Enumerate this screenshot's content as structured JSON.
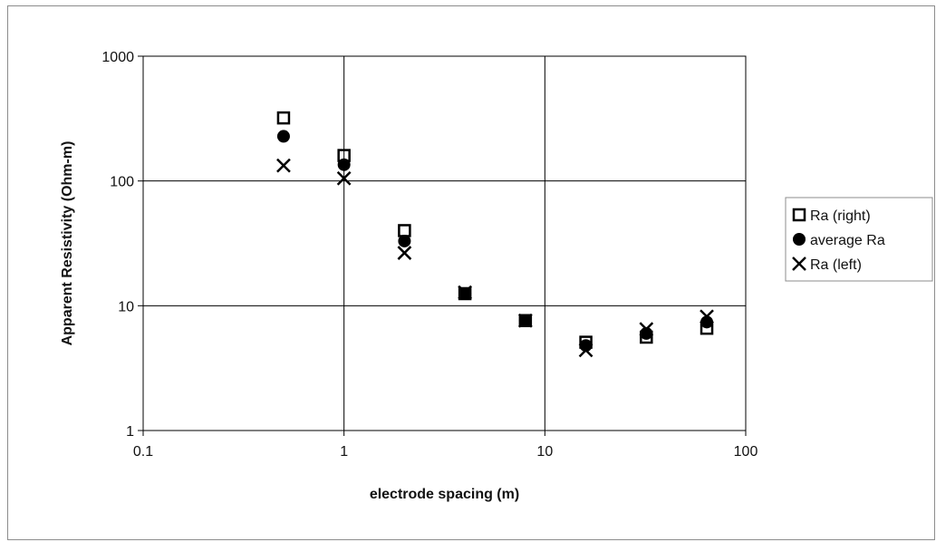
{
  "chart_data": {
    "type": "scatter",
    "title": "",
    "xlabel": "electrode spacing (m)",
    "ylabel": "Apparent Resistivity (Ohm-m)",
    "x_scale": "log",
    "y_scale": "log",
    "xlim": [
      0.1,
      100
    ],
    "ylim": [
      1,
      1000
    ],
    "x_ticks": [
      "0.1",
      "1",
      "10",
      "100"
    ],
    "y_ticks": [
      "1",
      "10",
      "100",
      "1000"
    ],
    "grid": true,
    "legend_position": "right",
    "series": [
      {
        "name": "Ra (right)",
        "marker": "open-square",
        "color": "#000000",
        "points": [
          {
            "x": 0.5,
            "y": 320
          },
          {
            "x": 1,
            "y": 160
          },
          {
            "x": 2,
            "y": 40
          },
          {
            "x": 4,
            "y": 12.5
          },
          {
            "x": 8,
            "y": 7.6
          },
          {
            "x": 16,
            "y": 5.1
          },
          {
            "x": 32,
            "y": 5.6
          },
          {
            "x": 64,
            "y": 6.6
          }
        ]
      },
      {
        "name": "average Ra",
        "marker": "filled-circle",
        "color": "#000000",
        "points": [
          {
            "x": 0.5,
            "y": 228
          },
          {
            "x": 1,
            "y": 135
          },
          {
            "x": 2,
            "y": 33
          },
          {
            "x": 4,
            "y": 12.5
          },
          {
            "x": 8,
            "y": 7.6
          },
          {
            "x": 16,
            "y": 4.8
          },
          {
            "x": 32,
            "y": 6.0
          },
          {
            "x": 64,
            "y": 7.4
          }
        ]
      },
      {
        "name": "Ra (left)",
        "marker": "x-cross",
        "color": "#000000",
        "points": [
          {
            "x": 0.5,
            "y": 133
          },
          {
            "x": 1,
            "y": 105
          },
          {
            "x": 2,
            "y": 26.5
          },
          {
            "x": 4,
            "y": 12.8
          },
          {
            "x": 8,
            "y": 7.6
          },
          {
            "x": 16,
            "y": 4.4
          },
          {
            "x": 32,
            "y": 6.5
          },
          {
            "x": 64,
            "y": 8.2
          }
        ]
      }
    ]
  }
}
